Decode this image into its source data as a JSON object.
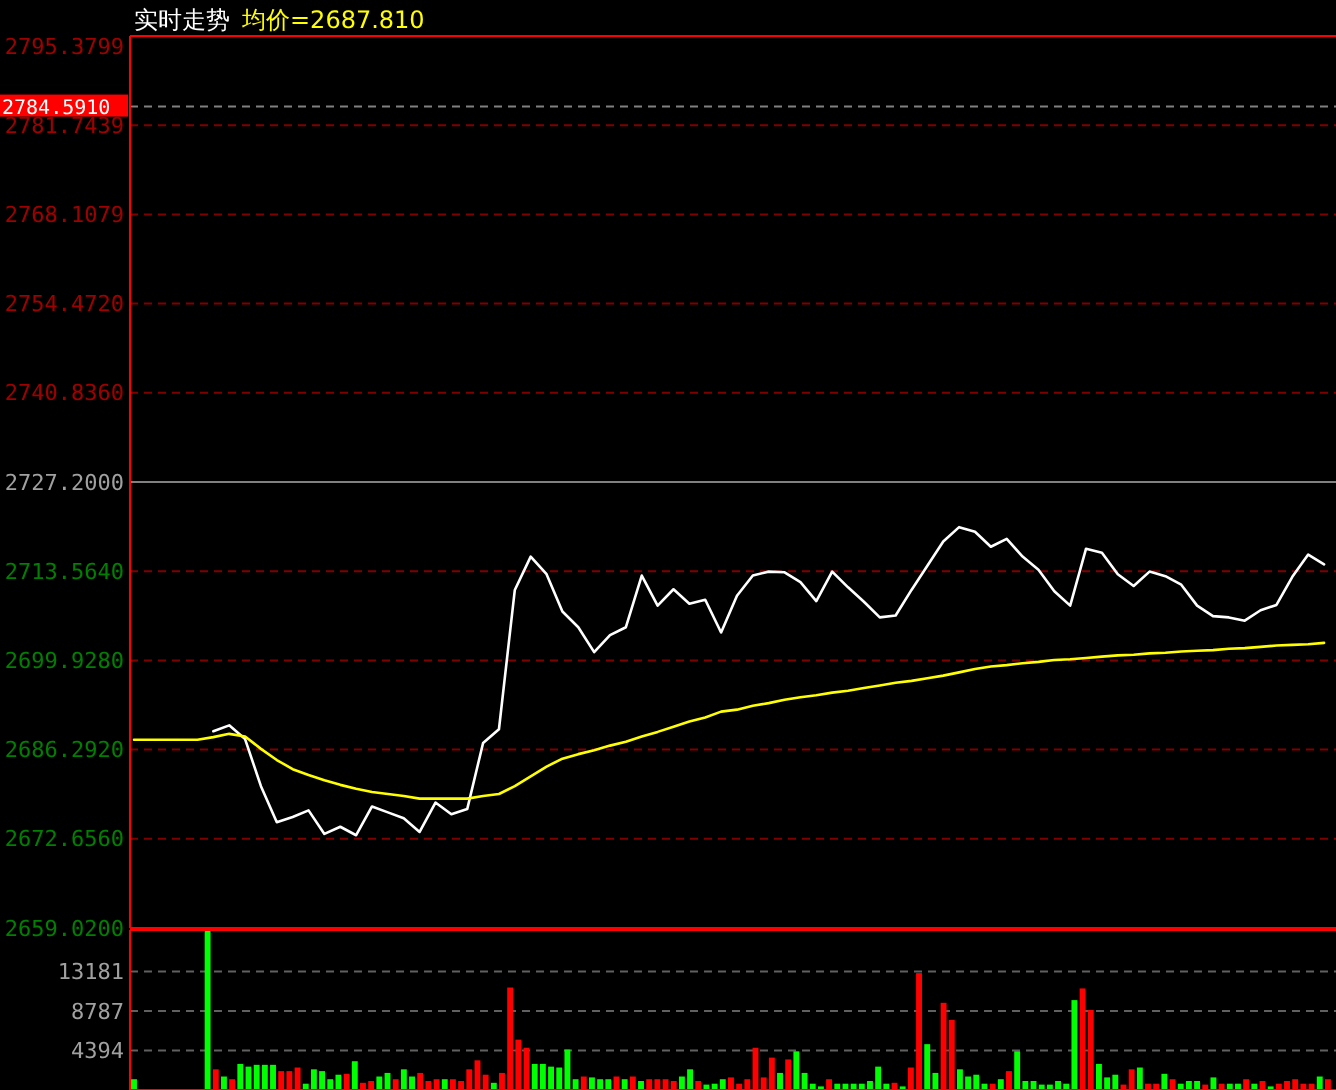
{
  "chart_data": [
    {
      "type": "line",
      "title": "实时走势",
      "legend": "top left",
      "grid": "y",
      "tick_labels": "y",
      "line_style": "solid",
      "marker": "none",
      "categories": [
        null,
        null,
        null,
        null,
        null,
        null,
        null,
        null,
        null,
        null,
        null,
        null,
        null,
        null,
        null,
        null,
        null,
        null,
        null,
        null,
        null,
        null,
        null,
        null,
        null,
        null,
        null,
        null,
        null,
        null,
        null,
        null,
        null,
        null,
        null,
        null,
        null,
        null,
        null,
        null,
        null,
        null,
        null,
        null,
        null,
        null,
        null,
        null,
        null,
        null,
        null,
        null,
        null,
        null,
        null,
        null,
        null,
        null,
        null,
        null,
        null,
        null,
        null,
        null,
        null,
        null,
        null,
        null,
        null,
        null,
        null,
        null,
        null,
        null,
        null,
        null
      ],
      "ylim": [
        2659.02,
        2795.3799
      ],
      "yticks": [
        {
          "value": 2659.02,
          "label": "2659.0200"
        },
        {
          "value": 2672.656,
          "label": "2672.6560"
        },
        {
          "value": 2686.292,
          "label": "2686.2920"
        },
        {
          "value": 2699.928,
          "label": "2699.9280"
        },
        {
          "value": 2713.564,
          "label": "2713.5640"
        },
        {
          "value": 2727.2,
          "label": "2727.2000"
        },
        {
          "value": 2740.836,
          "label": "2740.8360"
        },
        {
          "value": 2754.472,
          "label": "2754.4720"
        },
        {
          "value": 2768.1079,
          "label": "2768.1079"
        },
        {
          "value": 2781.7439,
          "label": "2781.7439"
        },
        {
          "value": 2795.3799,
          "label": "2795.3799"
        }
      ],
      "ref_lines": [
        {
          "axis": "y",
          "value": 2727.2,
          "color": "#808080",
          "line_style": "solid"
        },
        {
          "axis": "y",
          "value": 2784.591,
          "label": "2784.5910",
          "color": "#808080",
          "line_style": "dashed"
        }
      ],
      "series": [
        {
          "color": "#ffffff",
          "values": [
            null,
            null,
            null,
            null,
            null,
            2689.1,
            2690.0,
            2687.9,
            2680.7,
            2675.2,
            2676.0,
            2677.0,
            2673.4,
            2674.5,
            2673.2,
            2677.6,
            2676.7,
            2675.8,
            2673.7,
            2678.2,
            2676.4,
            2677.2,
            2687.3,
            2689.4,
            2710.7,
            2715.8,
            2713.1,
            2707.4,
            2705.0,
            2701.2,
            2703.8,
            2705.0,
            2712.9,
            2708.3,
            2710.8,
            2708.6,
            2709.2,
            2704.2,
            2709.8,
            2712.9,
            2713.5,
            2713.4,
            2711.9,
            2709.0,
            2713.5,
            2711.1,
            2708.9,
            2706.5,
            2706.8,
            2710.7,
            2714.4,
            2718.1,
            2720.3,
            2719.6,
            2717.3,
            2718.5,
            2715.8,
            2713.8,
            2710.5,
            2708.3,
            2717.0,
            2716.4,
            2713.1,
            2711.3,
            2713.5,
            2712.8,
            2711.5,
            2708.3,
            2706.7,
            2706.5,
            2706.0,
            2707.6,
            2708.4,
            2712.7,
            2716.1,
            2714.6
          ]
        },
        {
          "name": "均价=2687.810",
          "color": "#ffff00",
          "values": [
            2687.8,
            2687.8,
            2687.8,
            2687.8,
            2687.8,
            2688.2,
            2688.7,
            2688.3,
            2686.4,
            2684.7,
            2683.3,
            2682.4,
            2681.6,
            2680.9,
            2680.3,
            2679.8,
            2679.5,
            2679.2,
            2678.8,
            2678.8,
            2678.8,
            2678.8,
            2679.2,
            2679.5,
            2680.7,
            2682.2,
            2683.7,
            2684.9,
            2685.6,
            2686.2,
            2686.9,
            2687.5,
            2688.3,
            2689.0,
            2689.8,
            2690.6,
            2691.2,
            2692.1,
            2692.4,
            2693.0,
            2693.4,
            2693.9,
            2694.3,
            2694.6,
            2695.0,
            2695.3,
            2695.7,
            2696.1,
            2696.5,
            2696.8,
            2697.2,
            2697.6,
            2698.1,
            2698.6,
            2699.0,
            2699.2,
            2699.5,
            2699.7,
            2700.0,
            2700.1,
            2700.3,
            2700.5,
            2700.7,
            2700.8,
            2701.0,
            2701.1,
            2701.3,
            2701.4,
            2701.5,
            2701.7,
            2701.8,
            2702.0,
            2702.2,
            2702.3,
            2702.4,
            2702.6
          ]
        }
      ]
    },
    {
      "type": "bar",
      "grid": "y",
      "tick_labels": "y",
      "categories": [
        null,
        null,
        null,
        null,
        null,
        null,
        null,
        null,
        null,
        null,
        null,
        null,
        null,
        null,
        null,
        null,
        null,
        null,
        null,
        null,
        null,
        null,
        null,
        null,
        null,
        null,
        null,
        null,
        null,
        null,
        null,
        null,
        null,
        null,
        null,
        null,
        null,
        null,
        null,
        null,
        null,
        null,
        null,
        null,
        null,
        null,
        null,
        null,
        null,
        null,
        null,
        null,
        null,
        null,
        null,
        null,
        null,
        null,
        null,
        null,
        null,
        null,
        null,
        null,
        null,
        null,
        null,
        null,
        null,
        null,
        null,
        null,
        null,
        null,
        null,
        null,
        null,
        null,
        null,
        null,
        null,
        null,
        null,
        null,
        null,
        null,
        null,
        null,
        null,
        null,
        null,
        null,
        null,
        null,
        null,
        null,
        null,
        null,
        null,
        null,
        null,
        null,
        null,
        null,
        null,
        null,
        null,
        null,
        null,
        null,
        null,
        null,
        null,
        null,
        null,
        null,
        null,
        null,
        null,
        null,
        null,
        null,
        null,
        null,
        null,
        null,
        null,
        null,
        null,
        null,
        null,
        null,
        null,
        null,
        null,
        null,
        null,
        null,
        null,
        null,
        null,
        null,
        null,
        null,
        null,
        null,
        null
      ],
      "ylim": [
        0,
        17800
      ],
      "yticks": [
        4394,
        8787,
        13181
      ],
      "values": [
        1200,
        null,
        null,
        null,
        null,
        null,
        null,
        null,
        null,
        17800,
        2300,
        1500,
        1200,
        2900,
        2600,
        2800,
        2800,
        2800,
        2100,
        2100,
        2500,
        700,
        2300,
        2100,
        1200,
        1700,
        1800,
        3200,
        800,
        1000,
        1500,
        1900,
        1200,
        2300,
        1500,
        1900,
        1000,
        1200,
        1200,
        1200,
        1000,
        2300,
        3300,
        1700,
        800,
        1900,
        11400,
        5600,
        4700,
        2900,
        2900,
        2600,
        2500,
        4500,
        1200,
        1500,
        1400,
        1200,
        1200,
        1500,
        1200,
        1500,
        1000,
        1200,
        1200,
        1200,
        1000,
        1500,
        2300,
        1000,
        600,
        700,
        1200,
        1400,
        700,
        1200,
        4700,
        1400,
        3600,
        1900,
        3400,
        4300,
        1900,
        700,
        400,
        1200,
        700,
        700,
        700,
        700,
        1000,
        2600,
        700,
        800,
        400,
        2500,
        13000,
        5100,
        1900,
        9700,
        7800,
        2300,
        1500,
        1700,
        700,
        700,
        1200,
        2100,
        4300,
        1000,
        1000,
        600,
        600,
        1000,
        700,
        10000,
        11300,
        8900,
        2900,
        1400,
        1700,
        600,
        2300,
        2500,
        700,
        700,
        1800,
        1200,
        700,
        1000,
        1000,
        600,
        1400,
        700,
        700,
        700,
        1200,
        700,
        1000,
        400,
        700,
        1000,
        1200,
        700,
        700,
        1500,
        1200
      ],
      "colors": [
        "#00ff00",
        null,
        null,
        null,
        null,
        null,
        null,
        null,
        null,
        "#00ff00",
        "#ff0000",
        "#00ff00",
        "#ff0000",
        "#00ff00",
        "#00ff00",
        "#00ff00",
        "#00ff00",
        "#00ff00",
        "#ff0000",
        "#ff0000",
        "#ff0000",
        "#00ff00",
        "#00ff00",
        "#00ff00",
        "#00ff00",
        "#00ff00",
        "#ff0000",
        "#00ff00",
        "#ff0000",
        "#ff0000",
        "#00ff00",
        "#00ff00",
        "#ff0000",
        "#00ff00",
        "#00ff00",
        "#ff0000",
        "#ff0000",
        "#ff0000",
        "#00ff00",
        "#ff0000",
        "#ff0000",
        "#ff0000",
        "#ff0000",
        "#ff0000",
        "#00ff00",
        "#ff0000",
        "#ff0000",
        "#ff0000",
        "#ff0000",
        "#00ff00",
        "#00ff00",
        "#00ff00",
        "#00ff00",
        "#00ff00",
        "#00ff00",
        "#ff0000",
        "#00ff00",
        "#00ff00",
        "#00ff00",
        "#ff0000",
        "#00ff00",
        "#ff0000",
        "#00ff00",
        "#ff0000",
        "#ff0000",
        "#ff0000",
        "#ff0000",
        "#00ff00",
        "#00ff00",
        "#ff0000",
        "#00ff00",
        "#00ff00",
        "#00ff00",
        "#ff0000",
        "#ff0000",
        "#ff0000",
        "#ff0000",
        "#ff0000",
        "#ff0000",
        "#00ff00",
        "#ff0000",
        "#00ff00",
        "#00ff00",
        "#00ff00",
        "#00ff00",
        "#ff0000",
        "#00ff00",
        "#00ff00",
        "#00ff00",
        "#00ff00",
        "#00ff00",
        "#00ff00",
        "#00ff00",
        "#ff0000",
        "#00ff00",
        "#ff0000",
        "#ff0000",
        "#00ff00",
        "#00ff00",
        "#ff0000",
        "#ff0000",
        "#00ff00",
        "#00ff00",
        "#00ff00",
        "#00ff00",
        "#ff0000",
        "#00ff00",
        "#ff0000",
        "#00ff00",
        "#00ff00",
        "#00ff00",
        "#00ff00",
        "#00ff00",
        "#00ff00",
        "#00ff00",
        "#00ff00",
        "#ff0000",
        "#ff0000",
        "#00ff00",
        "#00ff00",
        "#00ff00",
        "#ff0000",
        "#ff0000",
        "#00ff00",
        "#ff0000",
        "#ff0000",
        "#00ff00",
        "#ff0000",
        "#00ff00",
        "#00ff00",
        "#00ff00",
        "#ff0000",
        "#00ff00",
        "#ff0000",
        "#00ff00",
        "#00ff00",
        "#ff0000",
        "#00ff00",
        "#ff0000",
        "#00ff00",
        "#ff0000",
        "#ff0000",
        "#ff0000",
        "#ff0000",
        "#ff0000",
        "#00ff00",
        "#ff0000"
      ]
    }
  ]
}
